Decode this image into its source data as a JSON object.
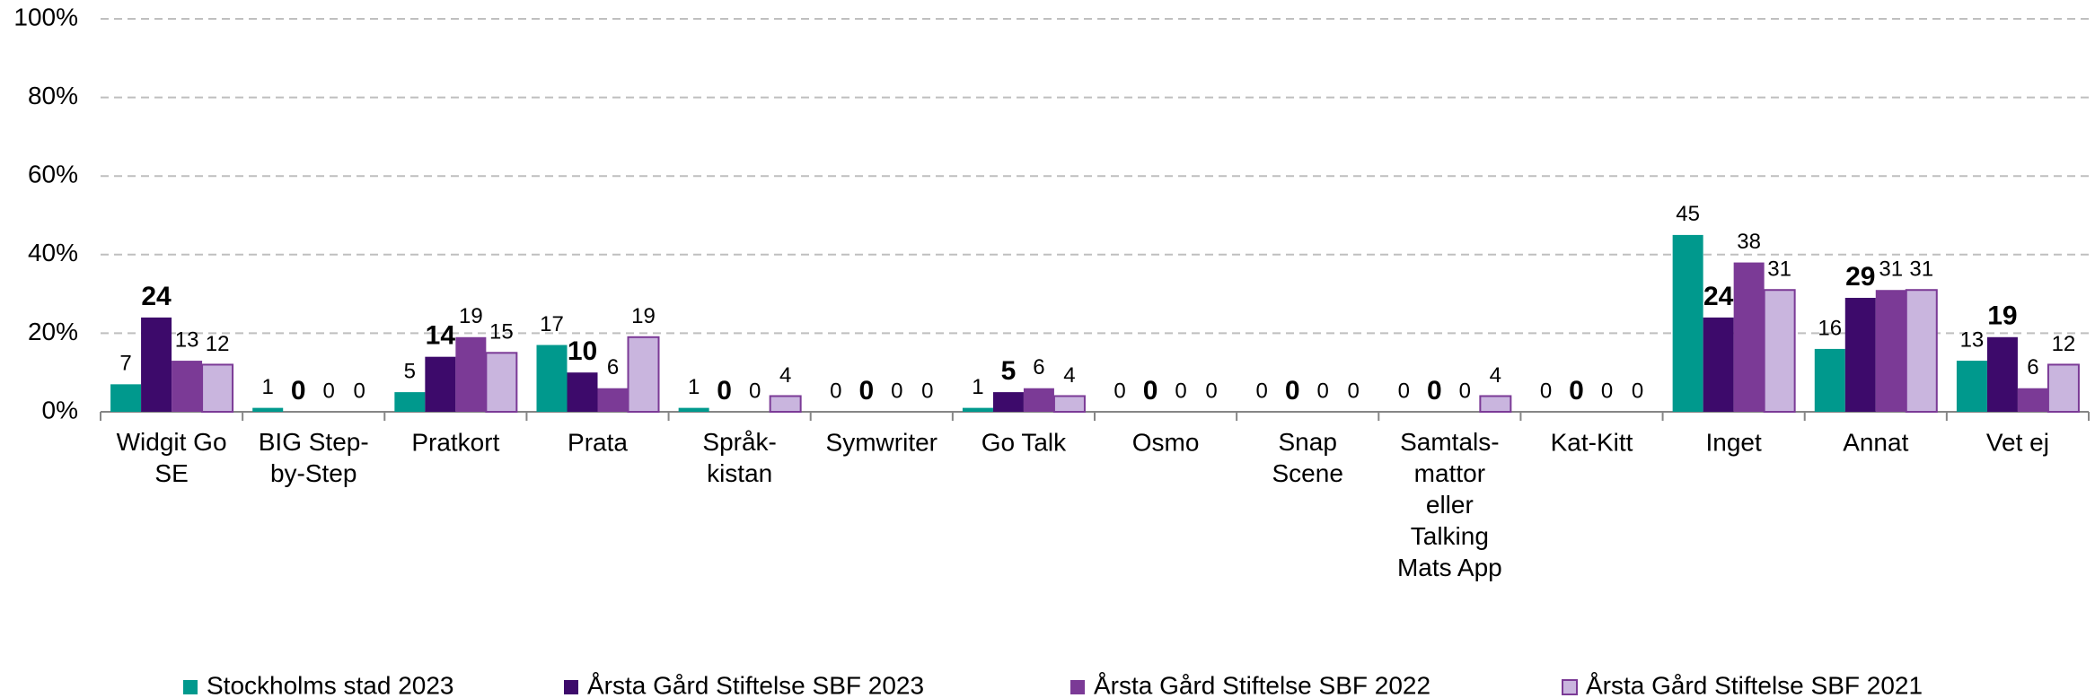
{
  "chart_data": {
    "type": "bar",
    "categories": [
      "Widgit Go\nSE",
      "BIG Step-\nby-Step",
      "Pratkort",
      "Prata",
      "Språk-\nkistan",
      "Symwriter",
      "Go Talk",
      "Osmo",
      "Snap\nScene",
      "Samtals-\nmattor\neller\nTalking\nMats App",
      "Kat-Kitt",
      "Inget",
      "Annat",
      "Vet ej"
    ],
    "series": [
      {
        "name": "Stockholms stad 2023",
        "color": "#00998d",
        "values": [
          7,
          1,
          5,
          17,
          1,
          0,
          1,
          0,
          0,
          0,
          0,
          45,
          16,
          13
        ]
      },
      {
        "name": "Årsta Gård Stiftelse SBF 2023",
        "color": "#3d0a6b",
        "label_bold": true,
        "values": [
          24,
          0,
          14,
          10,
          0,
          0,
          5,
          0,
          0,
          0,
          0,
          24,
          29,
          19
        ]
      },
      {
        "name": "Årsta Gård Stiftelse SBF 2022",
        "color": "#7b3a96",
        "values": [
          13,
          0,
          19,
          6,
          0,
          0,
          6,
          0,
          0,
          0,
          0,
          38,
          31,
          6
        ]
      },
      {
        "name": "Årsta Gård Stiftelse SBF 2021",
        "color": "#c9b5de",
        "values": [
          12,
          0,
          15,
          19,
          4,
          0,
          4,
          0,
          0,
          4,
          0,
          31,
          31,
          12
        ]
      }
    ],
    "ylim": [
      0,
      100
    ],
    "yticks": [
      {
        "value": 0,
        "label": "0%"
      },
      {
        "value": 20,
        "label": "20%"
      },
      {
        "value": 40,
        "label": "40%"
      },
      {
        "value": 60,
        "label": "60%"
      },
      {
        "value": 80,
        "label": "80%"
      },
      {
        "value": 100,
        "label": "100%"
      }
    ],
    "grid": true,
    "legend": "bottom"
  }
}
